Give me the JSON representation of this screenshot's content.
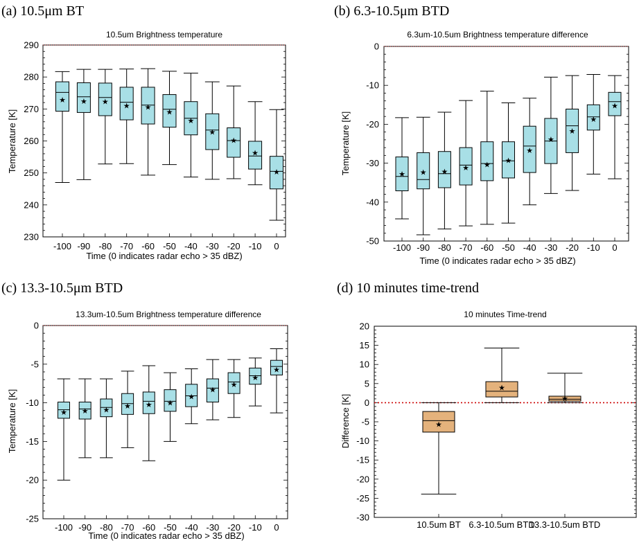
{
  "colors": {
    "box_fill_cyan": "#a8dfe6",
    "box_fill_tan": "#e4b27c",
    "zero_line": "#cc0000"
  },
  "chart_data": [
    {
      "id": "a",
      "type": "box",
      "panel_label": "(a) 10.5μm BT",
      "title": "10.5um Brightness temperature",
      "xlabel": "Time (0 indicates radar echo > 35 dBZ)",
      "ylabel": "Temperature [K]",
      "ylim": [
        230,
        290
      ],
      "yticks": [
        230,
        240,
        250,
        260,
        270,
        280,
        290
      ],
      "categories": [
        "-100",
        "-90",
        "-80",
        "-70",
        "-60",
        "-50",
        "-40",
        "-30",
        "-20",
        "-10",
        "0"
      ],
      "boxes": [
        {
          "min": 247,
          "q1": 269.3,
          "median": 275.2,
          "q3": 278.5,
          "max": 281.7,
          "mean": 272.9
        },
        {
          "min": 247.9,
          "q1": 268.9,
          "median": 273.8,
          "q3": 278.2,
          "max": 282.4,
          "mean": 272.5
        },
        {
          "min": 252.8,
          "q1": 267.9,
          "median": 273.6,
          "q3": 278.1,
          "max": 282.4,
          "mean": 272.4
        },
        {
          "min": 252.9,
          "q1": 266.6,
          "median": 272.1,
          "q3": 276.8,
          "max": 282.5,
          "mean": 271.1
        },
        {
          "min": 249.3,
          "q1": 265.3,
          "median": 271.2,
          "q3": 276.8,
          "max": 282.6,
          "mean": 270.6
        },
        {
          "min": 252.6,
          "q1": 264.3,
          "median": 269.9,
          "q3": 274.5,
          "max": 281.8,
          "mean": 269.1
        },
        {
          "min": 248.7,
          "q1": 261.9,
          "median": 267.1,
          "q3": 272.3,
          "max": 281.2,
          "mean": 266.4
        },
        {
          "min": 248,
          "q1": 257.3,
          "median": 263.4,
          "q3": 268.5,
          "max": 278.5,
          "mean": 262.8
        },
        {
          "min": 248.2,
          "q1": 254.9,
          "median": 260.1,
          "q3": 264.1,
          "max": 277.2,
          "mean": 260.2
        },
        {
          "min": 246.3,
          "q1": 251.2,
          "median": 255.3,
          "q3": 259.9,
          "max": 272.3,
          "mean": 256.3
        },
        {
          "min": 235.2,
          "q1": 245,
          "median": 250.5,
          "q3": 255.2,
          "max": 269.8,
          "mean": 250.4
        }
      ]
    },
    {
      "id": "b",
      "type": "box",
      "panel_label": "(b) 6.3-10.5μm BTD",
      "title": "6.3um-10.5um Brightness temperature difference",
      "xlabel": "Time (0 indicates radar echo > 35 dBZ)",
      "ylabel": "Temperature [K]",
      "ylim": [
        -50,
        0
      ],
      "yticks": [
        -50,
        -40,
        -30,
        -20,
        -10,
        0
      ],
      "categories": [
        "-100",
        "-90",
        "-80",
        "-70",
        "-60",
        "-50",
        "-40",
        "-30",
        "-20",
        "-10",
        "0"
      ],
      "boxes": [
        {
          "min": -44.3,
          "q1": -37.1,
          "median": -33.4,
          "q3": -28.4,
          "max": -18.3,
          "mean": -32.7
        },
        {
          "min": -48.4,
          "q1": -36.6,
          "median": -34.2,
          "q3": -27.3,
          "max": -18.2,
          "mean": -32.3
        },
        {
          "min": -46.9,
          "q1": -36.3,
          "median": -32.7,
          "q3": -27,
          "max": -16.9,
          "mean": -32.1
        },
        {
          "min": -46.1,
          "q1": -35.6,
          "median": -30.5,
          "q3": -26,
          "max": -13.9,
          "mean": -31.1
        },
        {
          "min": -45.7,
          "q1": -34.5,
          "median": -30.1,
          "q3": -24.5,
          "max": -11.5,
          "mean": -30.3
        },
        {
          "min": -45.4,
          "q1": -33.8,
          "median": -29.4,
          "q3": -24.5,
          "max": -14.5,
          "mean": -29.3
        },
        {
          "min": -40.7,
          "q1": -32.4,
          "median": -25.6,
          "q3": -20.5,
          "max": -13.3,
          "mean": -26.7
        },
        {
          "min": -37.8,
          "q1": -30.1,
          "median": -24.3,
          "q3": -18.5,
          "max": -7.9,
          "mean": -23.8
        },
        {
          "min": -37,
          "q1": -27.3,
          "median": -20.4,
          "q3": -16.1,
          "max": -7.5,
          "mean": -21.7
        },
        {
          "min": -32.8,
          "q1": -21.5,
          "median": -18.1,
          "q3": -15,
          "max": -7.2,
          "mean": -18.7
        },
        {
          "min": -34,
          "q1": -17.8,
          "median": -14.2,
          "q3": -11.8,
          "max": -7.5,
          "mean": -15.2
        }
      ]
    },
    {
      "id": "c",
      "type": "box",
      "panel_label": "(c) 13.3-10.5μm BTD",
      "title": "13.3um-10.5um Brightness temperature difference",
      "xlabel": "Time (0 indicates radar echo > 35 dBZ)",
      "ylabel": "Temperature [K]",
      "ylim": [
        -25,
        0
      ],
      "yticks": [
        -25,
        -20,
        -15,
        -10,
        -5,
        0
      ],
      "categories": [
        "-100",
        "-90",
        "-80",
        "-70",
        "-60",
        "-50",
        "-40",
        "-30",
        "-20",
        "-10",
        "0"
      ],
      "boxes": [
        {
          "min": -20,
          "q1": -12,
          "median": -10.9,
          "q3": -9.9,
          "max": -6.9,
          "mean": -11.2
        },
        {
          "min": -17.1,
          "q1": -12.1,
          "median": -10.8,
          "q3": -9.9,
          "max": -6.9,
          "mean": -11
        },
        {
          "min": -17.1,
          "q1": -11.8,
          "median": -10.6,
          "q3": -9.5,
          "max": -6.9,
          "mean": -10.9
        },
        {
          "min": -15.8,
          "q1": -11.5,
          "median": -10.1,
          "q3": -8.8,
          "max": -5.9,
          "mean": -10.4
        },
        {
          "min": -17.5,
          "q1": -11.4,
          "median": -9.8,
          "q3": -8.6,
          "max": -5.2,
          "mean": -10.2
        },
        {
          "min": -15,
          "q1": -11.1,
          "median": -9.8,
          "q3": -8.3,
          "max": -6.1,
          "mean": -10
        },
        {
          "min": -12.7,
          "q1": -10.5,
          "median": -9.1,
          "q3": -7.6,
          "max": -5.6,
          "mean": -9.2
        },
        {
          "min": -12.2,
          "q1": -9.9,
          "median": -8.1,
          "q3": -6.9,
          "max": -4.4,
          "mean": -8.3
        },
        {
          "min": -11.9,
          "q1": -8.8,
          "median": -7.3,
          "q3": -6.1,
          "max": -4.4,
          "mean": -7.6
        },
        {
          "min": -10.4,
          "q1": -7.6,
          "median": -6.5,
          "q3": -5.5,
          "max": -4.2,
          "mean": -6.7
        },
        {
          "min": -11.3,
          "q1": -6.4,
          "median": -5.3,
          "q3": -4.5,
          "max": -3,
          "mean": -5.7
        }
      ]
    },
    {
      "id": "d",
      "type": "box",
      "panel_label": "(d) 10 minutes time-trend",
      "title": "10 minutes Time-trend",
      "xlabel": "",
      "ylabel": "Difference [K]",
      "ylim": [
        -30,
        20
      ],
      "yticks": [
        -30,
        -25,
        -20,
        -15,
        -10,
        -5,
        0,
        5,
        10,
        15,
        20
      ],
      "reference_line": 0,
      "categories": [
        "10.5um BT",
        "6.3-10.5um BTD",
        "13.3-10.5um BTD"
      ],
      "boxes": [
        {
          "min": -23.9,
          "q1": -7.7,
          "median": -4.7,
          "q3": -2.3,
          "max": 0,
          "mean": -5.6
        },
        {
          "min": 0,
          "q1": 1.5,
          "median": 3,
          "q3": 5.5,
          "max": 14.3,
          "mean": 4
        },
        {
          "min": 0,
          "q1": 0.4,
          "median": 0.9,
          "q3": 1.7,
          "max": 7.7,
          "mean": 1.2
        }
      ]
    }
  ]
}
